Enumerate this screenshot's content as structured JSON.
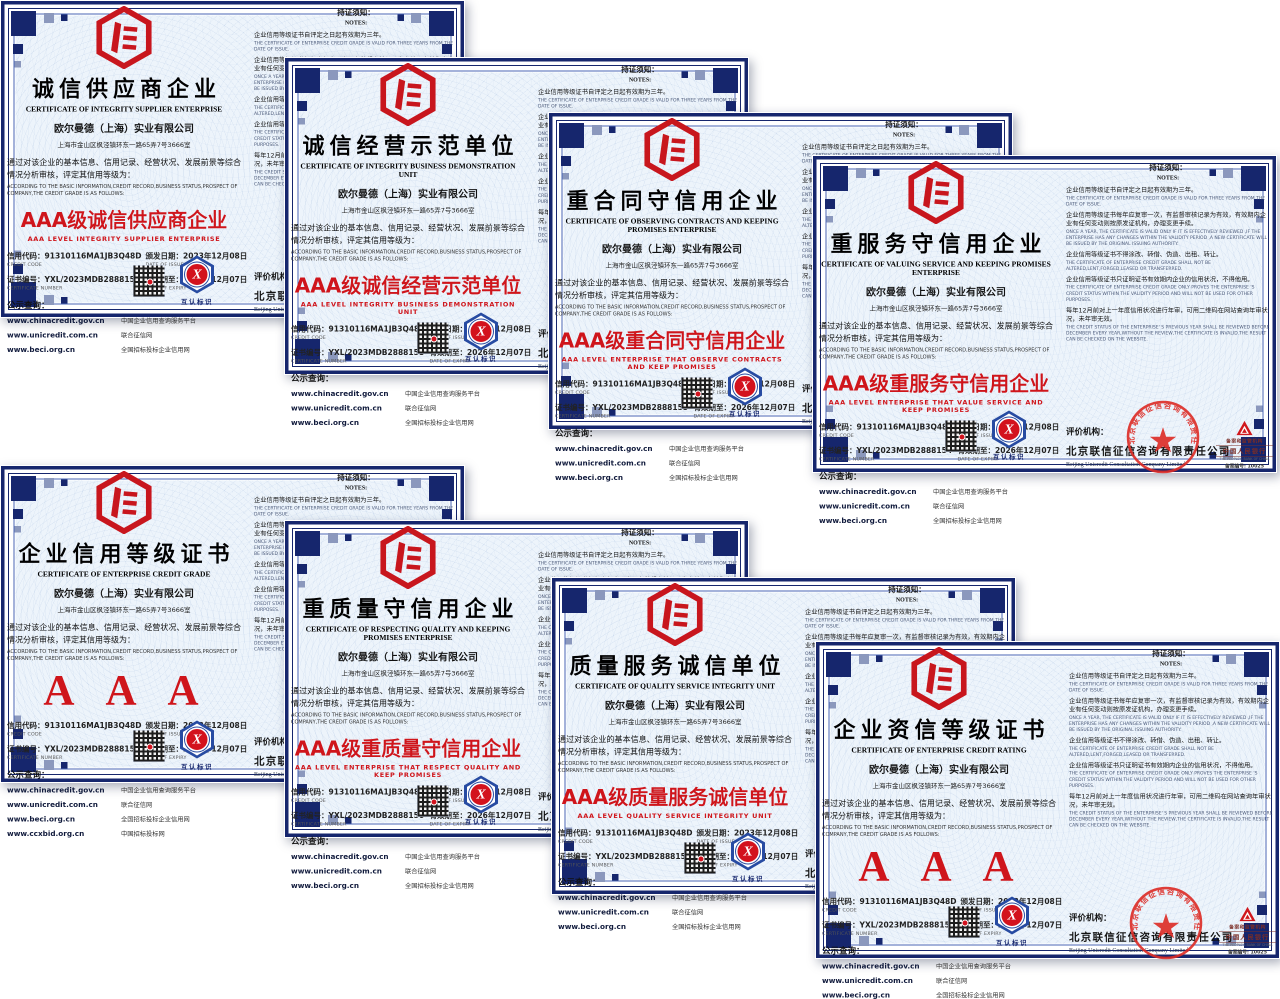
{
  "colors": {
    "primary_red": "#c8161d",
    "navy": "#16266d",
    "frame_blue": "#4a66b5",
    "paper_blue": "#edf4fb"
  },
  "shared": {
    "company": "欧尔曼德（上海）实业有限公司",
    "address": "上海市金山区枫泾镇环东一路65弄7号3666室",
    "body_cn": "通过对该企业的基本信息、信用记录、经营状况、发展前景等综合情况分析审核，评定其信用等级为：",
    "body_en": "ACCORDING TO THE BASIC INFORMATION,CREDIT RECORD,BUSINESS STATUS,PROSPECT OF COMPANY,THE CREDIT GRADE IS AS FOLLOWS:",
    "credit_code": "91310116MA1JB3Q48D",
    "issue_date": "2023年12月08日",
    "expiry_date": "2026年12月07日",
    "labels": {
      "credit_code": "信用代码：",
      "credit_code_en": "CREDIT CODE",
      "cert_no": "证书编号：",
      "cert_no_en": "CERTIFICATE NUMBER",
      "issue": "颁发日期：",
      "issue_en": "DATE OF ISSUE",
      "expiry": "有效期至：",
      "expiry_en": "DATE OF EXPIRY",
      "query": "公示查询："
    },
    "websites": [
      {
        "url": "www.chinacredit.gov.cn",
        "desc": "中国企业信用查询服务平台"
      },
      {
        "url": "www.unicredit.com.cn",
        "desc": "联合征信网"
      },
      {
        "url": "www.beci.org.cn",
        "desc": "全国招标投标企业信用网"
      }
    ],
    "extra_website": {
      "url": "www.ccxbid.org.cn",
      "desc": "中国招标投标网"
    },
    "badge_caption": "互认标识",
    "badge_glyph": "X",
    "notes": {
      "title_cn": "持证须知：",
      "title_en": "NOTES:",
      "items": [
        {
          "cn": "企业信用等级证书自评定之日起有效期为三年。",
          "en": "THE CERTIFICATE OF ENTERPRISE CREDIT GRADE IS VALID FOR THREE YEARS FROM THE DATE OF ISSUE."
        },
        {
          "cn": "企业信用等级证书每年应复审一次，有监督审核记录为有效，有效期内企业有任何变动则按原发证机构，办理变更手续。",
          "en": "ONCE A YEAR, THE CERTIFICATE IS VALID ONLY IF IT IS EFFECTIVELY REVIEWED ,IF THE ENTERPRISE HAS ANY CHANGES WITHIN THE VALIDITY PERIOD ,A NEW CERTIFICATE WILL BE ISSUED BY THE ORIGINAL ISSUING AUTHORITY."
        },
        {
          "cn": "企业信用等级证书不得涂改、转借、伪造、出租、转让。",
          "en": "THE CERTIFICATE OF ENTERPRISE CREDIT GRADE SHALL NOT BE ALTERED,LENT,FORGED,LEASED OR TRANSFERRED."
        },
        {
          "cn": "企业信用等级证书只证明证书有效期内企业的信用状况，不得他用。",
          "en": "THE CERTIFICATE OF ENTERPRISE CREDIT GRADE ONLY PROVES THE ENTERPRISE 'S CREDIT STATUS WITHIN THE VALIDITY PERIOD AND WILL NOT BE USED FOR OTHER PURPOSES."
        },
        {
          "cn": "每年12月前对上一年度信用状况进行年审，可用二维码在网站查询年审状况，未年审无效。",
          "en": "THE CREDIT STATUS OF THE ENTERPRISE' S PREVIOUS YEAR SHALL BE REVIEWED BEFORE DECEMBER EVERY YEAR,WITHOUT THE REVIEW,THE CERTIFICATE IS INVALID.THE RESULT CAN BE CHECKED ON THE WEBSITE."
        }
      ]
    },
    "agency": {
      "label": "评价机构：",
      "name_cn": "北京联信征信咨询有限责任公司",
      "name_en": "Beijing Unicredit Consultation Company Limited"
    },
    "regulator": {
      "line1": "备案和监管机构",
      "line2": "中国人民银行",
      "line3": "THE PEOPLE'S BANK OF CHINA",
      "line4": "备案编号: 10025"
    }
  },
  "certificates": [
    {
      "title_cn": "诚信供应商企业",
      "title_en": "CERTIFICATE OF INTEGRITY SUPPLIER ENTERPRISE",
      "rating_cn": "AAA级诚信供应商企业",
      "rating_en": "AAA LEVEL INTEGRITY SUPPLIER ENTERPRISE",
      "cert_no": "YXL/2023MDB2888159",
      "has_extra_site": false
    },
    {
      "title_cn": "诚信经营示范单位",
      "title_en": "CERTIFICATE OF INTEGRITY BUSINESS DEMONSTRATION UNIT",
      "rating_cn": "AAA级诚信经营示范单位",
      "rating_en": "AAA LEVEL INTEGRITY BUSINESS DEMONSTRATION UNIT",
      "cert_no": "YXL/2023MDB2888158",
      "has_extra_site": false
    },
    {
      "title_cn": "重合同守信用企业",
      "title_en": "CERTIFICATE OF OBSERVING CONTRACTS AND KEEPING PROMISES ENTERPRISE",
      "rating_cn": "AAA级重合同守信用企业",
      "rating_en": "AAA LEVEL ENTERPRISE THAT OBSERVE CONTRACTS AND KEEP PROMISES",
      "cert_no": "YXL/2023MDB2888155",
      "has_extra_site": false
    },
    {
      "title_cn": "重服务守信用企业",
      "title_en": "CERTIFICATE OF VALUING SERVICE AND KEEPING PROMISES ENTERPRISE",
      "rating_cn": "AAA级重服务守信用企业",
      "rating_en": "AAA LEVEL ENTERPRISE THAT VALUE SERVICE AND KEEP PROMISES",
      "cert_no": "YXL/2023MDB2888154",
      "has_extra_site": false
    },
    {
      "title_cn": "企业信用等级证书",
      "title_en": "CERTIFICATE OF ENTERPRISE CREDIT GRADE",
      "rating_cn": "AAA",
      "rating_en": "",
      "cert_no": "YXL/2023MDB2888152",
      "has_extra_site": true
    },
    {
      "title_cn": "重质量守信用企业",
      "title_en": "CERTIFICATE OF RESPECTING QUALITY AND KEEPING PROMISES ENTERPRISE",
      "rating_cn": "AAA级重质量守信用企业",
      "rating_en": "AAA LEVEL ENTERPRISE THAT RESPECT QUALITY AND KEEP PROMISES",
      "cert_no": "YXL/2023MDB2888156",
      "has_extra_site": false
    },
    {
      "title_cn": "质量服务诚信单位",
      "title_en": "CERTIFICATE OF QUALITY SERVICE INTEGRITY UNIT",
      "rating_cn": "AAA级质量服务诚信单位",
      "rating_en": "AAA LEVEL QUALITY SERVICE INTEGRITY UNIT",
      "cert_no": "YXL/2023MDB2888157",
      "has_extra_site": false
    },
    {
      "title_cn": "企业资信等级证书",
      "title_en": "CERTIFICATE OF ENTERPRISE CREDIT RATING",
      "rating_cn": "AAA",
      "rating_en": "",
      "cert_no": "YXL/2023MDB2888153",
      "has_extra_site": false
    }
  ]
}
